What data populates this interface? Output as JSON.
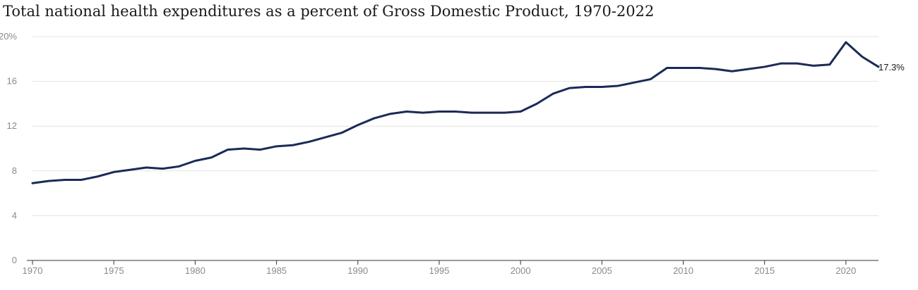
{
  "title": "Total national health expenditures as a percent of Gross Domestic Product, 1970-2022",
  "chart_data": {
    "type": "line",
    "title": "Total national health expenditures as a percent of Gross Domestic Product, 1970-2022",
    "xlabel": "",
    "ylabel": "",
    "x": [
      1970,
      1971,
      1972,
      1973,
      1974,
      1975,
      1976,
      1977,
      1978,
      1979,
      1980,
      1981,
      1982,
      1983,
      1984,
      1985,
      1986,
      1987,
      1988,
      1989,
      1990,
      1991,
      1992,
      1993,
      1994,
      1995,
      1996,
      1997,
      1998,
      1999,
      2000,
      2001,
      2002,
      2003,
      2004,
      2005,
      2006,
      2007,
      2008,
      2009,
      2010,
      2011,
      2012,
      2013,
      2014,
      2015,
      2016,
      2017,
      2018,
      2019,
      2020,
      2021,
      2022
    ],
    "series": [
      {
        "values": [
          6.9,
          7.1,
          7.2,
          7.2,
          7.5,
          7.9,
          8.1,
          8.3,
          8.2,
          8.4,
          8.9,
          9.2,
          9.9,
          10.0,
          9.9,
          10.2,
          10.3,
          10.6,
          11.0,
          11.4,
          12.1,
          12.7,
          13.1,
          13.3,
          13.2,
          13.3,
          13.3,
          13.2,
          13.2,
          13.2,
          13.3,
          14.0,
          14.9,
          15.4,
          15.5,
          15.5,
          15.6,
          15.9,
          16.2,
          17.2,
          17.2,
          17.2,
          17.1,
          16.9,
          17.1,
          17.3,
          17.6,
          17.6,
          17.4,
          17.5,
          19.5,
          18.2,
          17.3
        ],
        "color": "#1b2a57"
      }
    ],
    "ylim": [
      0,
      20
    ],
    "xlim": [
      1970,
      2022
    ],
    "y_ticks": [
      "0",
      "4",
      "8",
      "12",
      "16",
      "20%"
    ],
    "y_tick_values": [
      0,
      4,
      8,
      12,
      16,
      20
    ],
    "x_ticks": [
      "1970",
      "1975",
      "1980",
      "1985",
      "1990",
      "1995",
      "2000",
      "2005",
      "2010",
      "2015",
      "2020"
    ],
    "x_tick_values": [
      1970,
      1975,
      1980,
      1985,
      1990,
      1995,
      2000,
      2005,
      2010,
      2015,
      2020
    ],
    "end_label": "17.3%",
    "grid": true,
    "gridline_color": "#e3e3e3",
    "axis_color": "#333333",
    "tick_label_color": "#8a8a8a"
  }
}
